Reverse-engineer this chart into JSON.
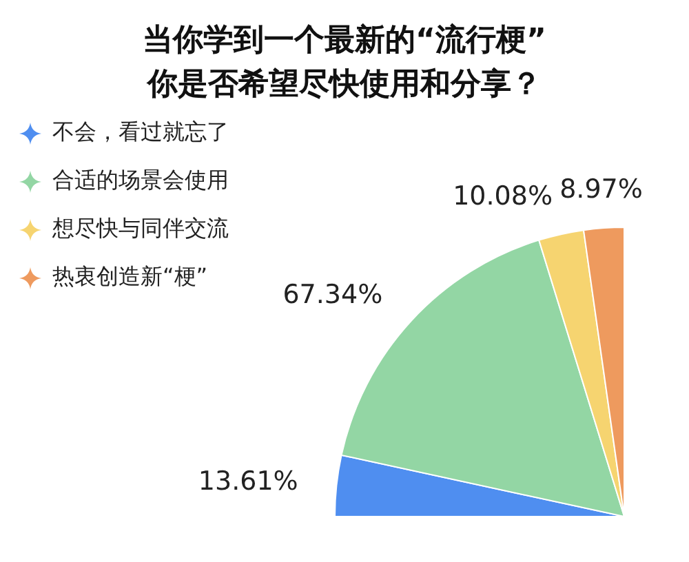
{
  "chart_data": {
    "type": "pie",
    "title": "当你学到一个最新的“流行梗”\n你是否希望尽快使用和分享？",
    "categories": [
      "不会，看过就忘了",
      "合适的场景会使用",
      "想尽快与同伴交流",
      "热衷创造新“梗”"
    ],
    "values": [
      13.61,
      67.34,
      10.08,
      8.97
    ],
    "colors": [
      "#4f8ef0",
      "#93d6a4",
      "#f6d470",
      "#ee9a5e"
    ],
    "value_labels": [
      "13.61%",
      "67.34%",
      "10.08%",
      "8.97%"
    ],
    "legend": "top left"
  }
}
